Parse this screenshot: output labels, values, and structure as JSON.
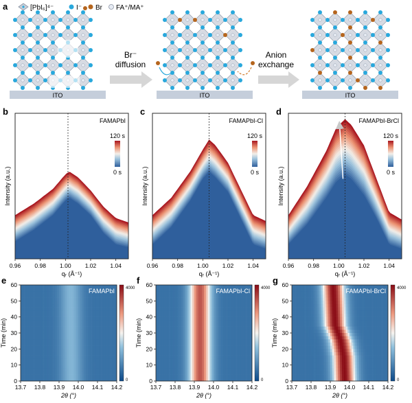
{
  "panel_a": {
    "letter": "a",
    "legend": {
      "octahedron": "[PbI₆]⁴⁻",
      "iodide": "I⁻",
      "bromide": "Br",
      "cation": "FA⁺/MA⁺"
    },
    "substrate_label": "ITO",
    "step1": {
      "line1": "Br⁻",
      "line2": "diffusion"
    },
    "step2": {
      "line1": "Anion",
      "line2": "exchange"
    },
    "colors": {
      "iodide": "#29a8dc",
      "bromide": "#b5651d",
      "cation": "#e6ebf3",
      "octahedron": "#c9cfd9",
      "substrate": "#c5cedb"
    }
  },
  "chart_data": [
    {
      "panel": "b",
      "type": "line",
      "label": "FAMAPbI",
      "xlabel": "qᵣ (Å⁻¹)",
      "ylabel": "Intensity (a.u.)",
      "xlim": [
        0.96,
        1.05
      ],
      "xticks": [
        "0.96",
        "0.98",
        "1.00",
        "1.02",
        "1.04"
      ],
      "colorbar": {
        "min_label": "0 s",
        "max_label": "120 s"
      },
      "dotted_line_x": 1.002,
      "series": [
        {
          "values_at": "0 s",
          "x": [
            0.96,
            0.975,
            0.99,
            1.0,
            1.003,
            1.01,
            1.02,
            1.03,
            1.04,
            1.05
          ],
          "y": [
            0.12,
            0.2,
            0.3,
            0.4,
            0.42,
            0.38,
            0.3,
            0.18,
            0.1,
            0.08
          ]
        },
        {
          "values_at": "120 s",
          "x": [
            0.96,
            0.975,
            0.99,
            1.0,
            1.003,
            1.01,
            1.02,
            1.03,
            1.04,
            1.05
          ],
          "y": [
            0.3,
            0.38,
            0.48,
            0.58,
            0.6,
            0.56,
            0.47,
            0.36,
            0.28,
            0.25
          ]
        }
      ]
    },
    {
      "panel": "c",
      "type": "line",
      "label": "FAMAPbI-Cl",
      "xlabel": "qᵣ (Å⁻¹)",
      "ylabel": "Intensity (a.u.)",
      "xlim": [
        0.96,
        1.05
      ],
      "xticks": [
        "0.96",
        "0.98",
        "1.00",
        "1.02",
        "1.04"
      ],
      "colorbar": {
        "min_label": "0 s",
        "max_label": "120 s"
      },
      "dotted_line_x": 1.005,
      "series": [
        {
          "values_at": "0 s",
          "x": [
            0.96,
            0.975,
            0.99,
            1.0,
            1.005,
            1.01,
            1.02,
            1.03,
            1.04,
            1.05
          ],
          "y": [
            0.1,
            0.22,
            0.4,
            0.55,
            0.6,
            0.56,
            0.46,
            0.28,
            0.1,
            0.07
          ]
        },
        {
          "values_at": "120 s",
          "x": [
            0.96,
            0.975,
            0.99,
            1.0,
            1.005,
            1.01,
            1.02,
            1.03,
            1.04,
            1.05
          ],
          "y": [
            0.3,
            0.42,
            0.6,
            0.75,
            0.82,
            0.78,
            0.66,
            0.48,
            0.3,
            0.26
          ]
        }
      ]
    },
    {
      "panel": "d",
      "type": "line",
      "label": "FAMAPbI-BrCl",
      "xlabel": "qᵣ (Å⁻¹)",
      "ylabel": "Intensity (a.u.)",
      "xlim": [
        0.96,
        1.05
      ],
      "xticks": [
        "0.96",
        "0.98",
        "1.00",
        "1.02",
        "1.04"
      ],
      "colorbar": {
        "min_label": "0 s",
        "max_label": "120 s"
      },
      "dotted_line_x": 1.005,
      "series": [
        {
          "values_at": "0 s",
          "x": [
            0.96,
            0.975,
            0.99,
            0.998,
            1.005,
            1.01,
            1.02,
            1.03,
            1.04,
            1.05
          ],
          "y": [
            0.1,
            0.24,
            0.42,
            0.53,
            0.58,
            0.55,
            0.44,
            0.28,
            0.1,
            0.07
          ]
        },
        {
          "values_at": "120 s",
          "x": [
            0.96,
            0.975,
            0.99,
            0.998,
            1.005,
            1.01,
            1.02,
            1.03,
            1.04,
            1.05
          ],
          "y": [
            0.3,
            0.5,
            0.74,
            0.9,
            0.96,
            0.92,
            0.78,
            0.55,
            0.32,
            0.27
          ]
        }
      ]
    },
    {
      "panel": "e",
      "type": "heatmap",
      "label": "FAMAPbI",
      "xlabel": "2θ (°)",
      "ylabel": "Time (min)",
      "xlim": [
        13.7,
        14.2
      ],
      "xticks": [
        "13.7",
        "13.8",
        "13.9",
        "14.0",
        "14.1",
        "14.2"
      ],
      "ylim": [
        0,
        60
      ],
      "yticks": [
        "0",
        "10",
        "20",
        "30",
        "40",
        "50",
        "60"
      ],
      "colorbar": {
        "min_label": "0",
        "max_label": "4000"
      },
      "peak_center": [
        {
          "t": 0,
          "x": 13.965
        },
        {
          "t": 60,
          "x": 13.96
        }
      ],
      "peak_max": 900
    },
    {
      "panel": "f",
      "type": "heatmap",
      "label": "FAMAPbI-Cl",
      "xlabel": "2θ (°)",
      "ylabel": "Time (min)",
      "xlim": [
        13.7,
        14.2
      ],
      "xticks": [
        "13.7",
        "13.8",
        "13.9",
        "14.0",
        "14.1",
        "14.2"
      ],
      "ylim": [
        0,
        60
      ],
      "yticks": [
        "0",
        "10",
        "20",
        "30",
        "40",
        "50",
        "60"
      ],
      "colorbar": {
        "min_label": "0",
        "max_label": "4000"
      },
      "peak_center": [
        {
          "t": 0,
          "x": 13.93
        },
        {
          "t": 60,
          "x": 13.93
        }
      ],
      "peak_max": 3300
    },
    {
      "panel": "g",
      "type": "heatmap",
      "label": "FAMAPbI-BrCl",
      "xlabel": "2θ (°)",
      "ylabel": "Time (min)",
      "xlim": [
        13.7,
        14.2
      ],
      "xticks": [
        "13.7",
        "13.8",
        "13.9",
        "14.0",
        "14.1",
        "14.2"
      ],
      "ylim": [
        0,
        60
      ],
      "yticks": [
        "0",
        "10",
        "20",
        "30",
        "40",
        "50",
        "60"
      ],
      "colorbar": {
        "min_label": "0",
        "max_label": "4000"
      },
      "peak_center": [
        {
          "t": 0,
          "x": 13.975
        },
        {
          "t": 15,
          "x": 13.97
        },
        {
          "t": 25,
          "x": 13.955
        },
        {
          "t": 35,
          "x": 13.925
        },
        {
          "t": 60,
          "x": 13.915
        }
      ],
      "peak_max": 4000
    }
  ]
}
